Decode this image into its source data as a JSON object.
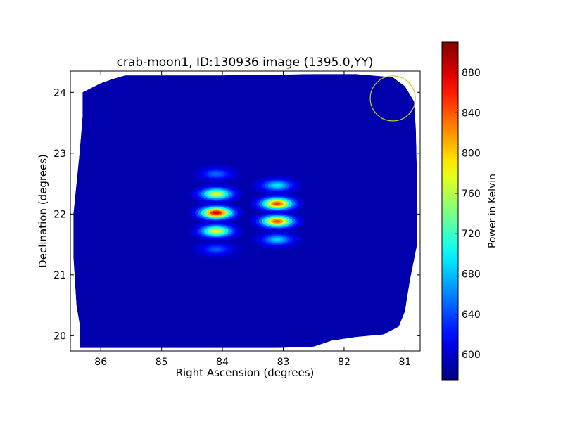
{
  "chart_data": {
    "type": "heatmap",
    "title": "crab-moon1, ID:130936 image (1395.0,YY)",
    "xlabel": "Right Ascension (degrees)",
    "ylabel": "Declination (degrees)",
    "xlim": [
      86.5,
      80.75
    ],
    "ylim": [
      19.75,
      24.35
    ],
    "xticks": [
      86,
      85,
      84,
      83,
      82,
      81
    ],
    "yticks": [
      20,
      21,
      22,
      23,
      24
    ],
    "colorbar": {
      "label": "Power in Kelvin",
      "min": 575,
      "max": 910,
      "ticks": [
        600,
        640,
        680,
        720,
        760,
        800,
        840,
        880
      ],
      "colormap": "jet"
    },
    "background_level": 590,
    "blobs": [
      {
        "ra": 84.1,
        "dec": 22.66,
        "peak": 655
      },
      {
        "ra": 84.1,
        "dec": 22.33,
        "peak": 785
      },
      {
        "ra": 84.1,
        "dec": 22.02,
        "peak": 895
      },
      {
        "ra": 84.1,
        "dec": 21.72,
        "peak": 790
      },
      {
        "ra": 84.1,
        "dec": 21.42,
        "peak": 650
      },
      {
        "ra": 83.1,
        "dec": 22.47,
        "peak": 700
      },
      {
        "ra": 83.1,
        "dec": 22.17,
        "peak": 860
      },
      {
        "ra": 83.1,
        "dec": 21.88,
        "peak": 855
      },
      {
        "ra": 83.1,
        "dec": 21.58,
        "peak": 690
      }
    ],
    "coverage_polygon": [
      [
        86.35,
        19.8
      ],
      [
        84.8,
        19.8
      ],
      [
        83.1,
        19.8
      ],
      [
        82.5,
        19.82
      ],
      [
        82.2,
        19.92
      ],
      [
        81.8,
        19.98
      ],
      [
        81.35,
        20.02
      ],
      [
        81.1,
        20.15
      ],
      [
        81.0,
        20.4
      ],
      [
        80.92,
        20.9
      ],
      [
        80.8,
        21.5
      ],
      [
        80.8,
        22.5
      ],
      [
        80.82,
        23.4
      ],
      [
        80.85,
        23.85
      ],
      [
        81.0,
        24.1
      ],
      [
        81.2,
        24.25
      ],
      [
        81.8,
        24.3
      ],
      [
        82.5,
        24.3
      ],
      [
        84.0,
        24.28
      ],
      [
        85.6,
        24.28
      ],
      [
        85.8,
        24.22
      ],
      [
        86.0,
        24.15
      ],
      [
        86.3,
        24.0
      ],
      [
        86.3,
        23.6
      ],
      [
        86.35,
        23.0
      ],
      [
        86.45,
        22.0
      ],
      [
        86.45,
        21.3
      ],
      [
        86.4,
        20.5
      ],
      [
        86.35,
        20.2
      ]
    ],
    "beam_circle": {
      "ra": 81.2,
      "dec": 23.9,
      "radius_deg": 0.37,
      "color": "#c8c832"
    }
  }
}
